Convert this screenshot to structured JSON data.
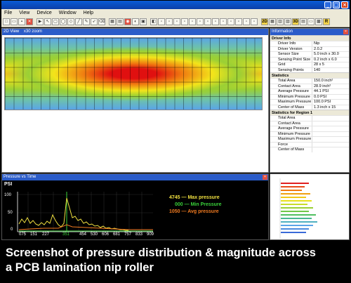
{
  "menu": [
    "File",
    "View",
    "Device",
    "Window",
    "Help"
  ],
  "view2d": {
    "title": "2D View",
    "zoom": "x30 zoom"
  },
  "information": {
    "title": "Information",
    "sections": [
      {
        "title": "Driver Info",
        "rows": [
          [
            "Driver Info",
            "Nip"
          ],
          [
            "Driver Version",
            "2.0.2"
          ],
          [
            "Sensor Size",
            "5.0 inch x 30.0"
          ],
          [
            "Sensing Point Size",
            "0.2 inch x 6.0"
          ],
          [
            "Grid",
            "28 x 5"
          ],
          [
            "Sensing Points",
            "140"
          ]
        ]
      },
      {
        "title": "Statistics",
        "rows": [
          [
            "Total Area",
            "150.0 inch²"
          ],
          [
            "Contact Area",
            "28.9 inch²"
          ],
          [
            "Average Pressure",
            "44.1 PSI"
          ],
          [
            "Minimum Pressure",
            "0.0 PSI"
          ],
          [
            "Maximum Pressure",
            "100.0 PSI"
          ],
          [
            "Center of Mass",
            "1.3 inch x 15"
          ]
        ]
      },
      {
        "title": "Statistics for Region 1",
        "rows": [
          [
            "Total Area",
            ""
          ],
          [
            "Contact Area",
            ""
          ],
          [
            "Average Pressure",
            ""
          ],
          [
            "Minimum Pressure",
            ""
          ],
          [
            "Maximum Pressure",
            ""
          ],
          [
            "Force",
            ""
          ],
          [
            "Center of Mass",
            ""
          ]
        ]
      }
    ]
  },
  "pressure_chart": {
    "title": "Pressure vs Time",
    "unit": "PSI",
    "y_ticks": [
      "100",
      "50",
      "0"
    ],
    "x_ticks": [
      "075",
      "151",
      "227",
      "351",
      "454",
      "530",
      "606",
      "681",
      "757",
      "833",
      "909"
    ],
    "highlight_tick": "351",
    "legend": [
      {
        "value": "4745",
        "label": "Max pressure",
        "color": "#f0e040"
      },
      {
        "value": "000",
        "label": "Min Pressure",
        "color": "#3ad23a"
      },
      {
        "value": "1050",
        "label": "Avg pressure",
        "color": "#f07a20"
      }
    ]
  },
  "caption": {
    "line1": "Screenshot of pressure distribution & magnitude across",
    "line2": "a PCB lamination nip roller"
  }
}
